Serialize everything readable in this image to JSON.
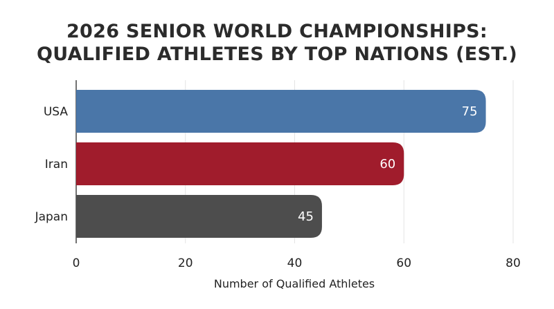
{
  "chart_data": {
    "type": "bar",
    "orientation": "horizontal",
    "title_lines": [
      "2026 SENIOR WORLD CHAMPIONSHIPS:",
      "QUALIFIED ATHLETES BY TOP NATIONS (EST.)"
    ],
    "categories": [
      "USA",
      "Iran",
      "Japan"
    ],
    "values": [
      75,
      60,
      45
    ],
    "value_labels": [
      "75",
      "60",
      "45"
    ],
    "colors": [
      "#4a76a8",
      "#a01c2c",
      "#4d4d4d"
    ],
    "xlabel": "Number of Qualified Athletes",
    "ylabel": "",
    "xlim": [
      0,
      80
    ],
    "xticks": [
      0,
      20,
      40,
      60,
      80
    ],
    "xtick_labels": [
      "0",
      "20",
      "40",
      "60",
      "80"
    ],
    "grid": "vertical",
    "legend": "none"
  }
}
